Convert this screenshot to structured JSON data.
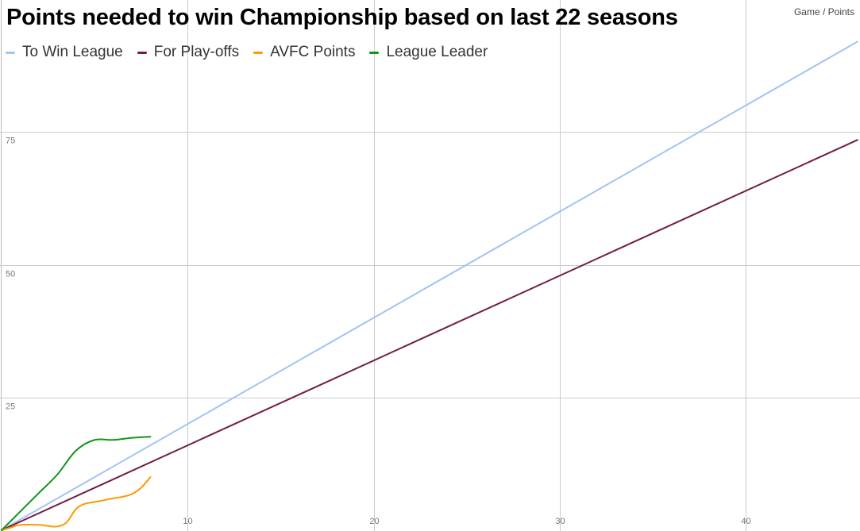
{
  "chart_data": {
    "type": "line",
    "title": "Points needed to win Championship based on last 22 seasons",
    "axis_note": "Game / Points",
    "xlim": [
      0,
      46
    ],
    "ylim": [
      0,
      100
    ],
    "x_ticks": [
      10,
      20,
      30,
      40
    ],
    "y_ticks": [
      25,
      50,
      75
    ],
    "grid": true,
    "legend_position": "top-left",
    "series": [
      {
        "name": "To Win League",
        "color": "#a4c2f4",
        "x": [
          0,
          46
        ],
        "y": [
          0,
          92
        ]
      },
      {
        "name": "For Play-offs",
        "color": "#741b47",
        "x": [
          0,
          46
        ],
        "y": [
          0,
          73.5
        ]
      },
      {
        "name": "AVFC Points",
        "color": "#ff9900",
        "x": [
          0,
          0.5,
          1,
          2,
          2.5,
          3,
          3.5,
          4,
          4.5,
          5,
          6,
          6.5,
          7,
          7.5,
          8
        ],
        "y": [
          0,
          0.5,
          1,
          1,
          0.8,
          0.7,
          1.5,
          4,
          5,
          5.3,
          6,
          6.3,
          6.8,
          8,
          10
        ]
      },
      {
        "name": "League Leader",
        "color": "#109618",
        "x": [
          0,
          1,
          2,
          3,
          4,
          5,
          6,
          7,
          8
        ],
        "y": [
          0,
          3.5,
          7,
          10.5,
          15,
          17,
          17,
          17.4,
          17.6
        ]
      }
    ]
  }
}
